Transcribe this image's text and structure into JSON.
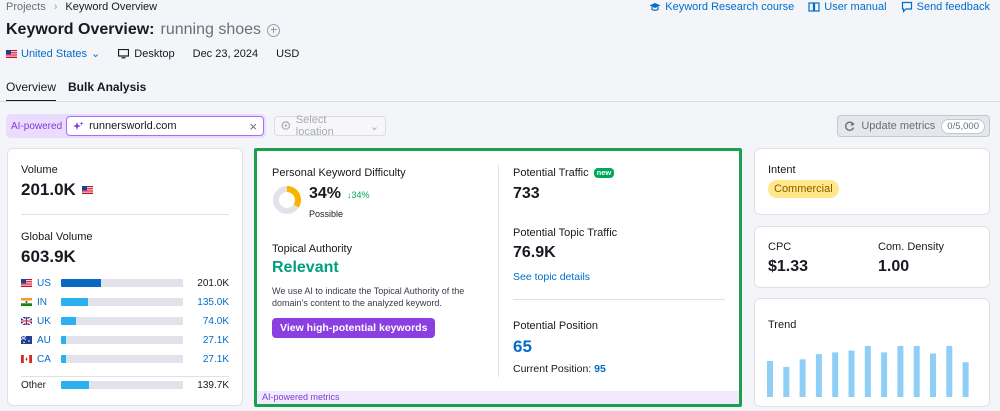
{
  "breadcrumb": {
    "parent": "Projects",
    "current": "Keyword Overview"
  },
  "top_links": [
    {
      "label": "Keyword Research course",
      "icon": "graduation-cap-icon"
    },
    {
      "label": "User manual",
      "icon": "book-icon"
    },
    {
      "label": "Send feedback",
      "icon": "chat-icon"
    }
  ],
  "header": {
    "title": "Keyword Overview:",
    "keyword": "running shoes"
  },
  "meta": {
    "database": "United States",
    "device": "Desktop",
    "date": "Dec 23, 2024",
    "currency": "USD"
  },
  "tabs": [
    {
      "label": "Overview",
      "active": true
    },
    {
      "label": "Bulk Analysis",
      "active": false
    }
  ],
  "toolbar": {
    "ai_label": "AI-powered",
    "domain_value": "runnersworld.com",
    "location_placeholder": "Select location",
    "update_label": "Update metrics",
    "update_count": "0/5,000"
  },
  "volume": {
    "label": "Volume",
    "value": "201.0K",
    "global_label": "Global Volume",
    "global_value": "603.9K",
    "countries": [
      {
        "code": "US",
        "value": "201.0K",
        "share": 0.33
      },
      {
        "code": "IN",
        "value": "135.0K",
        "share": 0.22
      },
      {
        "code": "UK",
        "value": "74.0K",
        "share": 0.12
      },
      {
        "code": "AU",
        "value": "27.1K",
        "share": 0.045
      },
      {
        "code": "CA",
        "value": "27.1K",
        "share": 0.045
      }
    ],
    "other": {
      "label": "Other",
      "value": "139.7K",
      "share": 0.23
    }
  },
  "ai_metrics": {
    "pkd_label": "Personal Keyword Difficulty",
    "pkd_value": "34%",
    "pkd_delta": "↓34%",
    "pkd_fraction": 0.34,
    "pkd_status": "Possible",
    "ta_label": "Topical Authority",
    "ta_value": "Relevant",
    "ta_desc": "We use AI to indicate the Topical Authority of the domain’s content to the analyzed keyword.",
    "hp_button": "View high-potential keywords",
    "pt_label": "Potential Traffic",
    "pt_badge": "new",
    "pt_value": "733",
    "ptt_label": "Potential Topic Traffic",
    "ptt_value": "76.9K",
    "topic_link": "See topic details",
    "pp_label": "Potential Position",
    "pp_value": "65",
    "cp_label": "Current Position:",
    "cp_value": "95",
    "footer": "AI-powered metrics"
  },
  "intent": {
    "label": "Intent",
    "value": "Commercial"
  },
  "cpc": {
    "label": "CPC",
    "value": "$1.33",
    "density_label": "Com. Density",
    "density_value": "1.00"
  },
  "trend": {
    "label": "Trend",
    "values": [
      0.62,
      0.52,
      0.65,
      0.74,
      0.77,
      0.8,
      0.88,
      0.77,
      0.88,
      0.88,
      0.75,
      0.88,
      0.6
    ]
  },
  "colors": {
    "accent": "#006dca",
    "green_frame": "#1d9f4e",
    "ai_purple": "#8b3fe0",
    "trend_bar": "#8fcff5",
    "us_bar": "#0a68c2",
    "other_bar": "#2bb0f0"
  }
}
